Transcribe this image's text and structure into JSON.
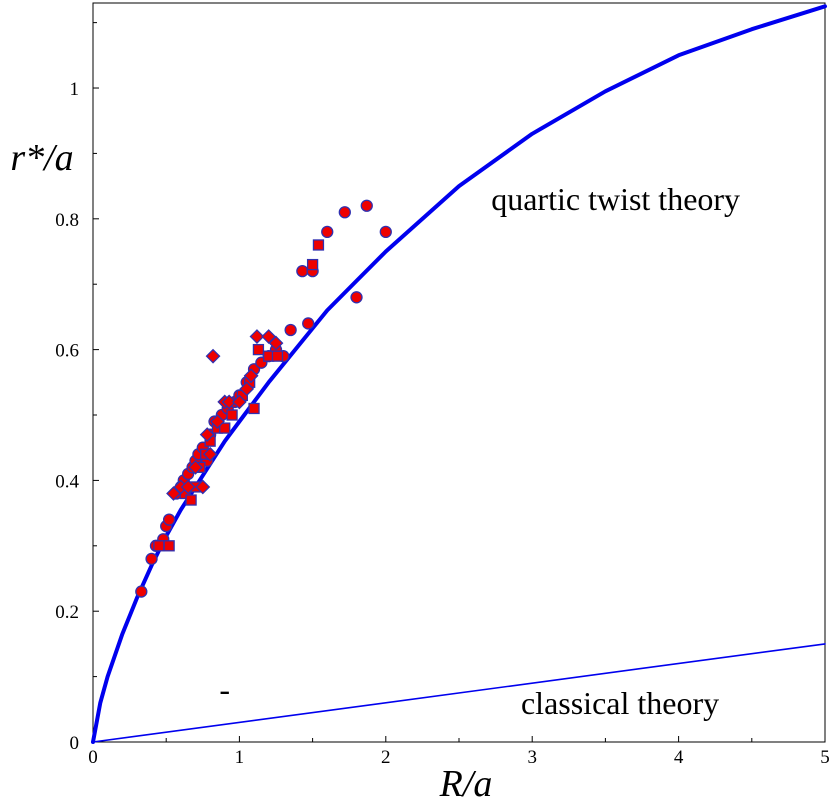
{
  "chart_data": {
    "type": "scatter",
    "xlabel": "R/a",
    "ylabel": "r*/a",
    "xlim": [
      0,
      5
    ],
    "ylim": [
      0,
      1.13
    ],
    "x_ticks": [
      "0",
      "1",
      "2",
      "3",
      "4",
      "5"
    ],
    "y_ticks": [
      "0",
      "0.2",
      "0.4",
      "0.6",
      "0.8",
      "1"
    ],
    "grid": false,
    "annotations": [
      {
        "text": "quartic twist theory",
        "x": 3.57,
        "y": 0.83
      },
      {
        "text": "classical theory",
        "x": 3.6,
        "y": 0.06
      },
      {
        "text": "-",
        "x": 0.9,
        "y": 0.08
      }
    ],
    "colors": {
      "curve": "#0000ee",
      "marker_fill": "#ee0000",
      "marker_edge": "#3030b0"
    },
    "curves": [
      {
        "kind": "quartic",
        "points": [
          [
            0,
            0
          ],
          [
            0.05,
            0.06
          ],
          [
            0.1,
            0.1
          ],
          [
            0.2,
            0.165
          ],
          [
            0.3,
            0.22
          ],
          [
            0.4,
            0.27
          ],
          [
            0.5,
            0.315
          ],
          [
            0.6,
            0.355
          ],
          [
            0.7,
            0.39
          ],
          [
            0.8,
            0.425
          ],
          [
            0.9,
            0.46
          ],
          [
            1.0,
            0.49
          ],
          [
            1.2,
            0.55
          ],
          [
            1.4,
            0.605
          ],
          [
            1.6,
            0.66
          ],
          [
            1.8,
            0.705
          ],
          [
            2.0,
            0.75
          ],
          [
            2.5,
            0.85
          ],
          [
            3.0,
            0.93
          ],
          [
            3.5,
            0.995
          ],
          [
            4.0,
            1.05
          ],
          [
            4.5,
            1.09
          ],
          [
            5.0,
            1.125
          ]
        ]
      },
      {
        "kind": "classical",
        "points": [
          [
            0,
            0
          ],
          [
            5,
            0.15
          ]
        ]
      }
    ],
    "series": [
      {
        "marker": "circle",
        "points": [
          [
            0.33,
            0.23
          ],
          [
            0.4,
            0.28
          ],
          [
            0.43,
            0.3
          ],
          [
            0.48,
            0.31
          ],
          [
            0.5,
            0.33
          ],
          [
            0.52,
            0.34
          ],
          [
            0.57,
            0.38
          ],
          [
            0.6,
            0.39
          ],
          [
            0.62,
            0.4
          ],
          [
            0.65,
            0.41
          ],
          [
            0.68,
            0.42
          ],
          [
            0.7,
            0.43
          ],
          [
            0.72,
            0.44
          ],
          [
            0.75,
            0.45
          ],
          [
            0.78,
            0.43
          ],
          [
            0.8,
            0.47
          ],
          [
            0.83,
            0.49
          ],
          [
            0.88,
            0.5
          ],
          [
            0.92,
            0.51
          ],
          [
            0.97,
            0.52
          ],
          [
            1.0,
            0.53
          ],
          [
            1.05,
            0.55
          ],
          [
            1.1,
            0.57
          ],
          [
            1.15,
            0.58
          ],
          [
            1.2,
            0.59
          ],
          [
            1.25,
            0.6
          ],
          [
            1.3,
            0.59
          ],
          [
            1.35,
            0.63
          ],
          [
            1.43,
            0.72
          ],
          [
            1.47,
            0.64
          ],
          [
            1.5,
            0.72
          ],
          [
            1.6,
            0.78
          ],
          [
            1.72,
            0.81
          ],
          [
            1.8,
            0.68
          ],
          [
            1.87,
            0.82
          ],
          [
            2.0,
            0.78
          ]
        ]
      },
      {
        "marker": "square",
        "points": [
          [
            0.45,
            0.3
          ],
          [
            0.52,
            0.3
          ],
          [
            0.63,
            0.38
          ],
          [
            0.67,
            0.37
          ],
          [
            0.7,
            0.39
          ],
          [
            0.73,
            0.42
          ],
          [
            0.77,
            0.44
          ],
          [
            0.8,
            0.46
          ],
          [
            0.85,
            0.48
          ],
          [
            0.9,
            0.48
          ],
          [
            0.95,
            0.5
          ],
          [
            1.02,
            0.53
          ],
          [
            1.07,
            0.55
          ],
          [
            1.1,
            0.51
          ],
          [
            1.13,
            0.6
          ],
          [
            1.2,
            0.59
          ],
          [
            1.26,
            0.59
          ],
          [
            1.5,
            0.73
          ],
          [
            1.54,
            0.76
          ]
        ]
      },
      {
        "marker": "diamond",
        "points": [
          [
            0.55,
            0.38
          ],
          [
            0.6,
            0.39
          ],
          [
            0.65,
            0.39
          ],
          [
            0.7,
            0.42
          ],
          [
            0.75,
            0.39
          ],
          [
            0.78,
            0.47
          ],
          [
            0.8,
            0.44
          ],
          [
            0.82,
            0.59
          ],
          [
            0.85,
            0.49
          ],
          [
            0.9,
            0.52
          ],
          [
            0.93,
            0.52
          ],
          [
            1.0,
            0.52
          ],
          [
            1.05,
            0.54
          ],
          [
            1.08,
            0.56
          ],
          [
            1.12,
            0.62
          ],
          [
            1.2,
            0.62
          ],
          [
            1.25,
            0.61
          ]
        ]
      }
    ]
  }
}
